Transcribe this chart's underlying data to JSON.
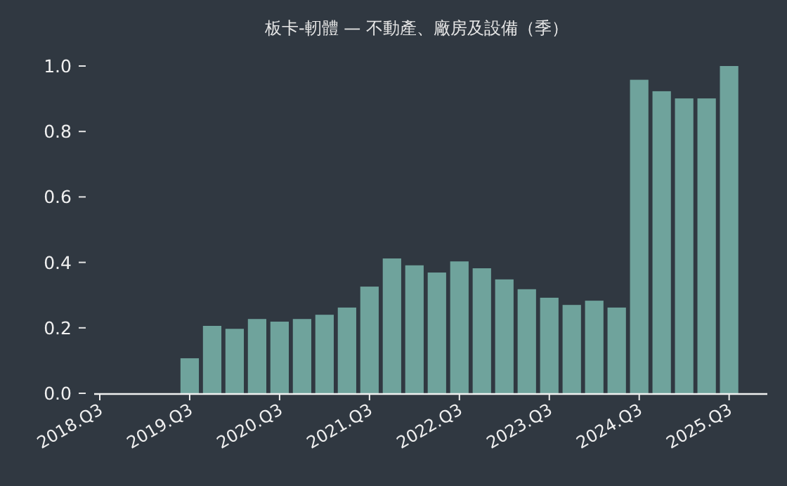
{
  "chart_data": {
    "type": "bar",
    "title": "板卡-軔體 — 不動產、廠房及設備（季）",
    "categories": [
      "2018.Q3",
      null,
      null,
      null,
      "2019.Q3",
      null,
      null,
      null,
      "2020.Q3",
      null,
      null,
      null,
      "2021.Q3",
      null,
      null,
      null,
      "2022.Q3",
      null,
      null,
      null,
      "2023.Q3",
      null,
      null,
      null,
      "2024.Q3",
      null,
      null,
      null,
      "2025.Q3"
    ],
    "values": [
      null,
      null,
      null,
      null,
      0.107,
      0.206,
      0.197,
      0.227,
      0.219,
      0.227,
      0.24,
      0.262,
      0.326,
      0.412,
      0.391,
      0.369,
      0.403,
      0.382,
      0.348,
      0.318,
      0.292,
      0.27,
      0.283,
      0.262,
      0.958,
      0.923,
      0.901,
      0.901,
      1.0
    ],
    "color": "#6fa39c",
    "ylim": [
      0,
      1
    ],
    "yticks": [
      {
        "value": 0,
        "label": "0.0"
      },
      0.2,
      0.4,
      0.6,
      0.8,
      {
        "value": 1,
        "label": "1.0"
      }
    ],
    "grid": false
  }
}
